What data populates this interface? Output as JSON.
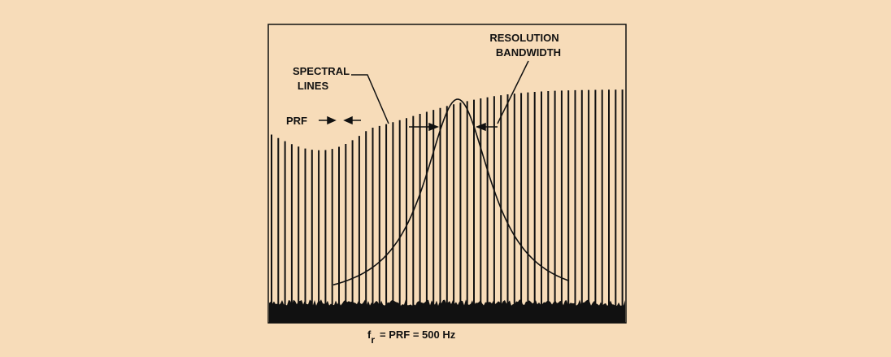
{
  "labels": {
    "resolution_bandwidth": [
      "RESOLUTION",
      "BANDWIDTH"
    ],
    "spectral_lines": [
      "SPECTRAL",
      "LINES"
    ],
    "prf": "PRF"
  },
  "caption": {
    "symbol": "f",
    "subscript": "r",
    "text": "= PRF = 500 Hz"
  }
}
